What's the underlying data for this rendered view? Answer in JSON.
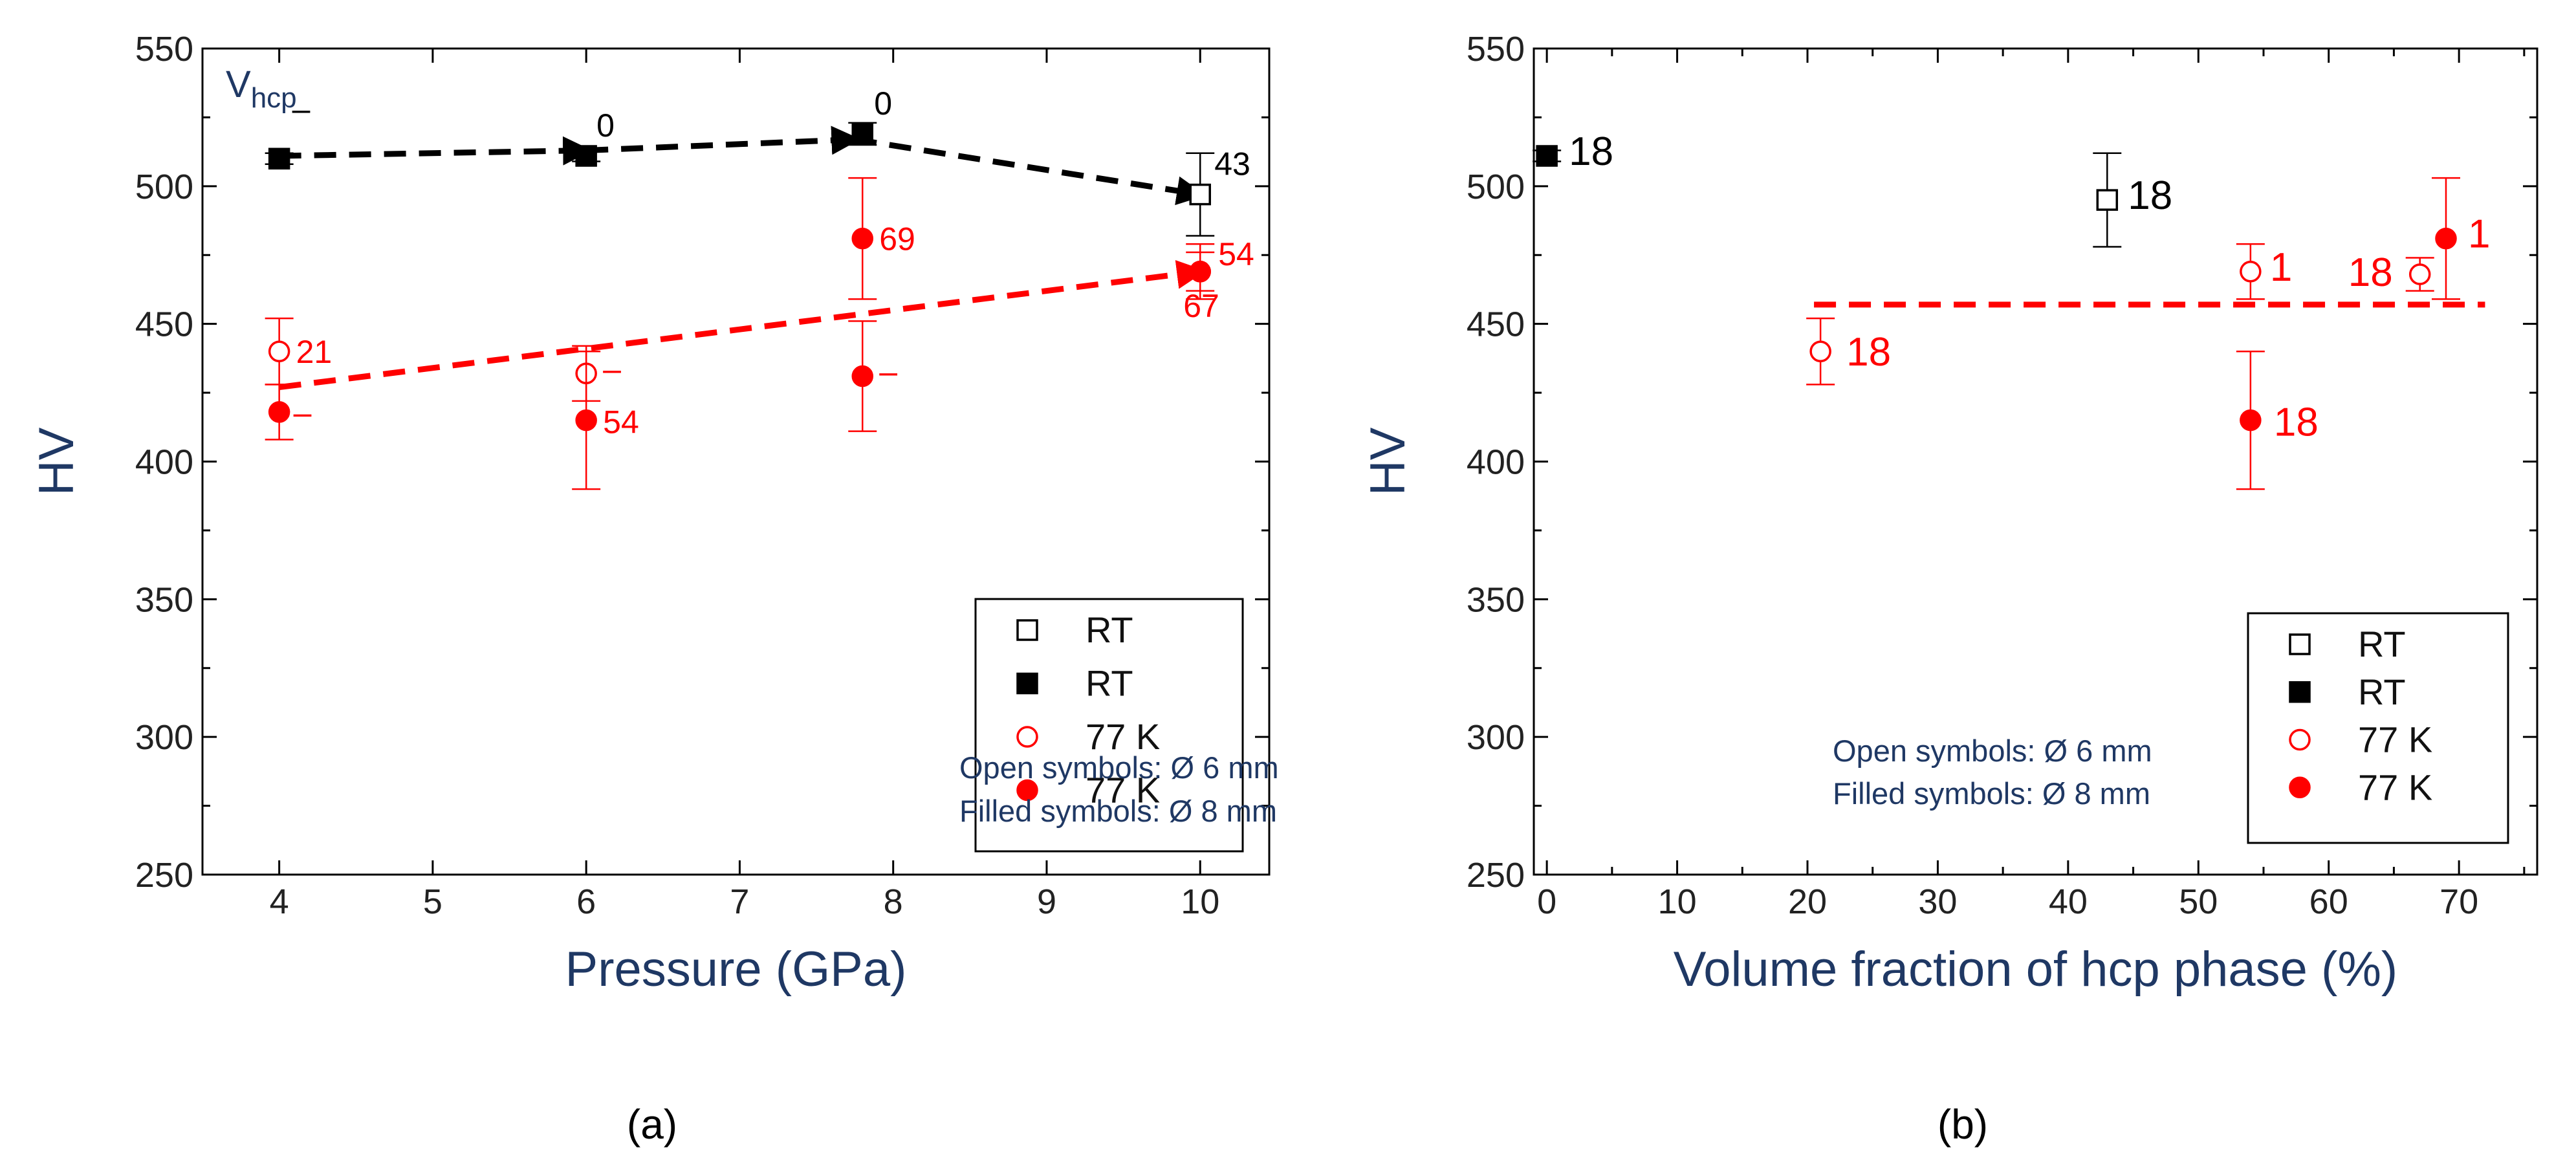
{
  "chart_data": [
    {
      "type": "scatter",
      "panel_label": "(a)",
      "xlabel": "Pressure (GPa)",
      "ylabel": "HV",
      "xlim": [
        3.5,
        10.45
      ],
      "ylim": [
        250,
        550
      ],
      "xticks": [
        4,
        5,
        6,
        7,
        8,
        9,
        10
      ],
      "yticks": [
        250,
        300,
        350,
        400,
        450,
        500,
        550
      ],
      "corner_label": {
        "main": "V",
        "sub": "hcp"
      },
      "series": [
        {
          "name": "RT",
          "marker": "open-square",
          "color": "#000000",
          "points": [
            {
              "x": 10,
              "y": 497,
              "err": 15,
              "label": "43"
            }
          ]
        },
        {
          "name": "RT",
          "marker": "filled-square",
          "color": "#000000",
          "points": [
            {
              "x": 4,
              "y": 510,
              "err": 2,
              "label": "–"
            },
            {
              "x": 6,
              "y": 511,
              "err": 2,
              "label": "0"
            },
            {
              "x": 7.8,
              "y": 519,
              "err": 4,
              "label": "0"
            }
          ]
        },
        {
          "name": "77 K",
          "marker": "open-circle",
          "color": "#ff0000",
          "points": [
            {
              "x": 4,
              "y": 440,
              "err": 12,
              "label": "21"
            },
            {
              "x": 6,
              "y": 432,
              "err": 10,
              "label": "–"
            },
            {
              "x": 10,
              "y": 469,
              "err": 7,
              "label": "67"
            }
          ]
        },
        {
          "name": "77 K",
          "marker": "filled-circle",
          "color": "#ff0000",
          "points": [
            {
              "x": 4,
              "y": 418,
              "err": 10,
              "label": "–"
            },
            {
              "x": 6,
              "y": 415,
              "err": 25,
              "label": "54"
            },
            {
              "x": 7.8,
              "y": 481,
              "err": 22,
              "label": "69"
            },
            {
              "x": 7.8,
              "y": 431,
              "err": 20,
              "label": "–"
            },
            {
              "x": 10,
              "y": 469,
              "err": 10,
              "label": "54"
            }
          ]
        }
      ],
      "trend_lines": [
        {
          "color": "#000000",
          "points": [
            [
              4,
              511
            ],
            [
              6,
              513
            ],
            [
              7.75,
              517
            ],
            [
              10,
              497
            ]
          ],
          "arrows": true
        },
        {
          "color": "#ff0000",
          "points": [
            [
              4,
              427
            ],
            [
              10,
              469
            ]
          ],
          "arrows": true
        }
      ],
      "legend": {
        "position": "bottom-right",
        "entries": [
          {
            "label": "RT",
            "marker": "open-square",
            "color": "#000000"
          },
          {
            "label": "RT",
            "marker": "filled-square",
            "color": "#000000"
          },
          {
            "label": "77 K",
            "marker": "open-circle",
            "color": "#ff0000"
          },
          {
            "label": "77 K",
            "marker": "filled-circle",
            "color": "#ff0000"
          }
        ]
      },
      "notes": [
        "Open symbols:  Ø  6 mm",
        "Filled symbols:  Ø  8 mm"
      ]
    },
    {
      "type": "scatter",
      "panel_label": "(b)",
      "xlabel": "Volume fraction of hcp phase (%)",
      "ylabel": "HV",
      "xlim": [
        -1,
        76
      ],
      "ylim": [
        250,
        550
      ],
      "xticks": [
        0,
        10,
        20,
        30,
        40,
        50,
        60,
        70
      ],
      "yticks": [
        250,
        300,
        350,
        400,
        450,
        500,
        550
      ],
      "series": [
        {
          "name": "RT",
          "marker": "open-square",
          "color": "#000000",
          "points": [
            {
              "x": 43,
              "y": 495,
              "err": 17,
              "label": "18"
            }
          ]
        },
        {
          "name": "RT",
          "marker": "filled-square",
          "color": "#000000",
          "points": [
            {
              "x": 0,
              "y": 511,
              "err": 2,
              "label": "18"
            }
          ]
        },
        {
          "name": "77 K",
          "marker": "open-circle",
          "color": "#ff0000",
          "points": [
            {
              "x": 21,
              "y": 440,
              "err": 12,
              "label": "18"
            },
            {
              "x": 54,
              "y": 469,
              "err": 10,
              "label": "1"
            },
            {
              "x": 67,
              "y": 468,
              "err": 6,
              "label": "18"
            }
          ]
        },
        {
          "name": "77 K",
          "marker": "filled-circle",
          "color": "#ff0000",
          "points": [
            {
              "x": 54,
              "y": 415,
              "err": 25,
              "label": "18"
            },
            {
              "x": 69,
              "y": 481,
              "err": 22,
              "label": "1"
            }
          ]
        }
      ],
      "trend_lines": [
        {
          "color": "#ff0000",
          "points": [
            [
              20.5,
              457
            ],
            [
              72,
              457
            ]
          ],
          "arrows": false
        }
      ],
      "legend": {
        "position": "bottom-right",
        "entries": [
          {
            "label": "RT",
            "marker": "open-square",
            "color": "#000000"
          },
          {
            "label": "RT",
            "marker": "filled-square",
            "color": "#000000"
          },
          {
            "label": "77 K",
            "marker": "open-circle",
            "color": "#ff0000"
          },
          {
            "label": "77 K",
            "marker": "filled-circle",
            "color": "#ff0000"
          }
        ]
      },
      "notes": [
        "Open symbols:  Ø  6 mm",
        "Filled symbols:  Ø  8 mm"
      ]
    }
  ]
}
